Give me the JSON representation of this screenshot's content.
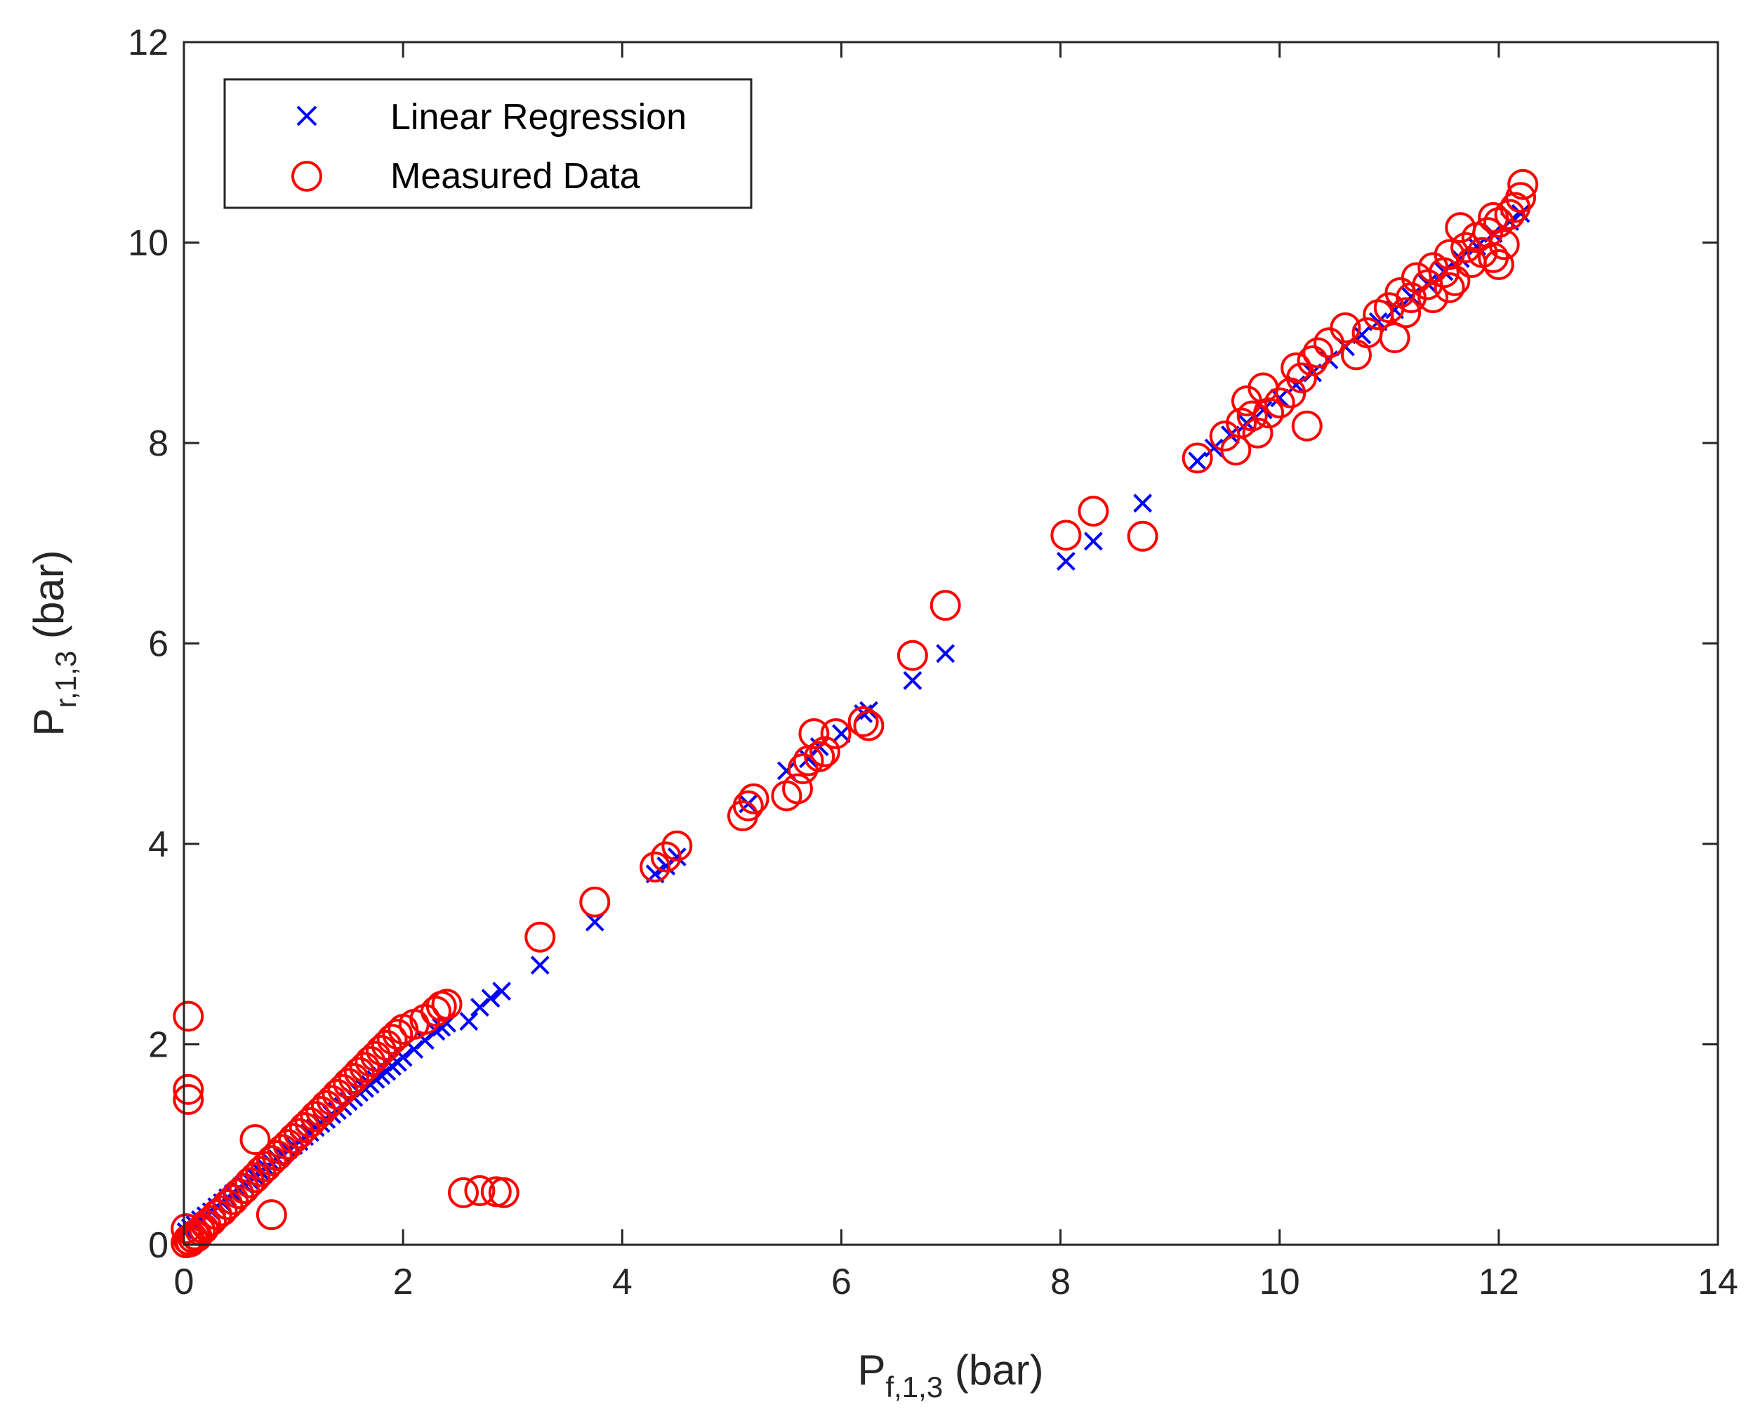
{
  "chart_data": {
    "type": "scatter",
    "title": "",
    "xlabel": {
      "main": "P",
      "sub": "f,1,3",
      "unit": " (bar)"
    },
    "ylabel": {
      "main": "P",
      "sub": "r,1,3",
      "unit": " (bar)"
    },
    "xlim": [
      0,
      14
    ],
    "ylim": [
      0,
      12
    ],
    "xticks": [
      0,
      2,
      4,
      6,
      8,
      10,
      12,
      14
    ],
    "yticks": [
      0,
      2,
      4,
      6,
      8,
      10,
      12
    ],
    "grid": false,
    "legend_position": "top-left",
    "series": [
      {
        "name": "Linear Regression",
        "marker": "x",
        "color": "#0000ff",
        "points": [
          [
            0.02,
            0.13
          ],
          [
            0.06,
            0.17
          ],
          [
            0.1,
            0.2
          ],
          [
            0.15,
            0.25
          ],
          [
            0.2,
            0.29
          ],
          [
            0.25,
            0.33
          ],
          [
            0.3,
            0.38
          ],
          [
            0.35,
            0.42
          ],
          [
            0.4,
            0.47
          ],
          [
            0.45,
            0.51
          ],
          [
            0.5,
            0.55
          ],
          [
            0.55,
            0.6
          ],
          [
            0.6,
            0.64
          ],
          [
            0.65,
            0.68
          ],
          [
            0.7,
            0.73
          ],
          [
            0.75,
            0.77
          ],
          [
            0.8,
            0.82
          ],
          [
            0.85,
            0.86
          ],
          [
            0.9,
            0.9
          ],
          [
            0.95,
            0.95
          ],
          [
            1.0,
            0.99
          ],
          [
            1.05,
            1.03
          ],
          [
            1.1,
            1.08
          ],
          [
            1.15,
            1.12
          ],
          [
            1.2,
            1.17
          ],
          [
            1.25,
            1.21
          ],
          [
            1.3,
            1.25
          ],
          [
            1.35,
            1.3
          ],
          [
            1.4,
            1.34
          ],
          [
            1.45,
            1.38
          ],
          [
            1.5,
            1.43
          ],
          [
            1.55,
            1.47
          ],
          [
            1.6,
            1.52
          ],
          [
            1.65,
            1.56
          ],
          [
            1.7,
            1.6
          ],
          [
            1.75,
            1.65
          ],
          [
            1.8,
            1.69
          ],
          [
            1.85,
            1.73
          ],
          [
            1.9,
            1.78
          ],
          [
            1.95,
            1.82
          ],
          [
            2.0,
            1.87
          ],
          [
            2.1,
            1.95
          ],
          [
            2.2,
            2.04
          ],
          [
            2.3,
            2.13
          ],
          [
            2.35,
            2.17
          ],
          [
            2.4,
            2.21
          ],
          [
            2.6,
            2.23
          ],
          [
            2.7,
            2.37
          ],
          [
            2.8,
            2.46
          ],
          [
            2.9,
            2.53
          ],
          [
            3.25,
            2.79
          ],
          [
            3.75,
            3.22
          ],
          [
            4.3,
            3.7
          ],
          [
            4.4,
            3.78
          ],
          [
            4.5,
            3.87
          ],
          [
            5.15,
            4.4
          ],
          [
            5.5,
            4.73
          ],
          [
            5.7,
            4.85
          ],
          [
            5.8,
            4.97
          ],
          [
            6.0,
            5.1
          ],
          [
            6.2,
            5.3
          ],
          [
            6.25,
            5.33
          ],
          [
            6.65,
            5.63
          ],
          [
            6.95,
            5.9
          ],
          [
            8.05,
            6.82
          ],
          [
            8.3,
            7.02
          ],
          [
            8.75,
            7.4
          ],
          [
            9.25,
            7.82
          ],
          [
            9.4,
            7.95
          ],
          [
            9.55,
            8.08
          ],
          [
            9.7,
            8.2
          ],
          [
            9.85,
            8.33
          ],
          [
            10.0,
            8.45
          ],
          [
            10.15,
            8.58
          ],
          [
            10.3,
            8.7
          ],
          [
            10.45,
            8.83
          ],
          [
            10.6,
            8.96
          ],
          [
            10.75,
            9.08
          ],
          [
            10.9,
            9.21
          ],
          [
            11.05,
            9.33
          ],
          [
            11.2,
            9.46
          ],
          [
            11.35,
            9.59
          ],
          [
            11.5,
            9.71
          ],
          [
            11.65,
            9.84
          ],
          [
            11.8,
            9.96
          ],
          [
            11.95,
            10.09
          ],
          [
            12.1,
            10.21
          ],
          [
            12.2,
            10.29
          ]
        ]
      },
      {
        "name": "Measured Data",
        "marker": "o",
        "color": "#ff0000",
        "points": [
          [
            0.02,
            0.02
          ],
          [
            0.04,
            0.05
          ],
          [
            0.06,
            0.03
          ],
          [
            0.08,
            0.07
          ],
          [
            0.1,
            0.1
          ],
          [
            0.12,
            0.08
          ],
          [
            0.15,
            0.14
          ],
          [
            0.02,
            0.16
          ],
          [
            0.18,
            0.16
          ],
          [
            0.2,
            0.2
          ],
          [
            0.25,
            0.24
          ],
          [
            0.3,
            0.3
          ],
          [
            0.35,
            0.34
          ],
          [
            0.4,
            0.4
          ],
          [
            0.45,
            0.45
          ],
          [
            0.5,
            0.51
          ],
          [
            0.55,
            0.56
          ],
          [
            0.6,
            0.62
          ],
          [
            0.65,
            0.67
          ],
          [
            0.7,
            0.73
          ],
          [
            0.75,
            0.78
          ],
          [
            0.8,
            0.84
          ],
          [
            0.85,
            0.89
          ],
          [
            0.9,
            0.95
          ],
          [
            0.95,
            1.0
          ],
          [
            1.0,
            1.06
          ],
          [
            1.05,
            1.11
          ],
          [
            1.1,
            1.17
          ],
          [
            1.15,
            1.22
          ],
          [
            1.2,
            1.28
          ],
          [
            1.25,
            1.33
          ],
          [
            1.3,
            1.39
          ],
          [
            1.35,
            1.44
          ],
          [
            1.4,
            1.5
          ],
          [
            1.45,
            1.55
          ],
          [
            1.5,
            1.61
          ],
          [
            1.55,
            1.66
          ],
          [
            1.6,
            1.72
          ],
          [
            1.65,
            1.77
          ],
          [
            1.7,
            1.83
          ],
          [
            1.75,
            1.88
          ],
          [
            1.8,
            1.94
          ],
          [
            1.85,
            1.99
          ],
          [
            1.9,
            2.05
          ],
          [
            1.95,
            2.1
          ],
          [
            2.0,
            2.15
          ],
          [
            2.1,
            2.2
          ],
          [
            2.2,
            2.25
          ],
          [
            2.3,
            2.33
          ],
          [
            2.35,
            2.38
          ],
          [
            2.4,
            2.4
          ],
          [
            0.65,
            1.05
          ],
          [
            0.8,
            0.3
          ],
          [
            0.04,
            2.28
          ],
          [
            0.04,
            1.55
          ],
          [
            0.04,
            1.45
          ],
          [
            2.55,
            0.52
          ],
          [
            2.7,
            0.54
          ],
          [
            2.85,
            0.53
          ],
          [
            2.92,
            0.52
          ],
          [
            3.25,
            3.07
          ],
          [
            3.75,
            3.42
          ],
          [
            4.3,
            3.77
          ],
          [
            4.4,
            3.87
          ],
          [
            4.5,
            3.98
          ],
          [
            5.1,
            4.28
          ],
          [
            5.15,
            4.38
          ],
          [
            5.2,
            4.45
          ],
          [
            5.5,
            4.48
          ],
          [
            5.6,
            4.55
          ],
          [
            5.65,
            4.75
          ],
          [
            5.7,
            4.83
          ],
          [
            5.75,
            5.1
          ],
          [
            5.8,
            4.87
          ],
          [
            5.85,
            4.92
          ],
          [
            5.95,
            5.1
          ],
          [
            6.2,
            5.22
          ],
          [
            6.25,
            5.18
          ],
          [
            6.65,
            5.88
          ],
          [
            6.95,
            6.38
          ],
          [
            8.05,
            7.08
          ],
          [
            8.3,
            7.32
          ],
          [
            8.75,
            7.07
          ],
          [
            9.25,
            7.85
          ],
          [
            9.5,
            8.07
          ],
          [
            9.6,
            7.93
          ],
          [
            9.65,
            8.2
          ],
          [
            9.7,
            8.42
          ],
          [
            9.75,
            8.27
          ],
          [
            9.8,
            8.1
          ],
          [
            9.85,
            8.55
          ],
          [
            9.9,
            8.3
          ],
          [
            10.0,
            8.4
          ],
          [
            10.1,
            8.5
          ],
          [
            10.15,
            8.75
          ],
          [
            10.2,
            8.65
          ],
          [
            10.25,
            8.17
          ],
          [
            10.3,
            8.82
          ],
          [
            10.35,
            8.9
          ],
          [
            10.45,
            9.0
          ],
          [
            10.6,
            9.15
          ],
          [
            10.7,
            8.88
          ],
          [
            10.8,
            9.1
          ],
          [
            10.9,
            9.28
          ],
          [
            11.0,
            9.35
          ],
          [
            11.05,
            9.05
          ],
          [
            11.1,
            9.5
          ],
          [
            11.2,
            9.45
          ],
          [
            11.25,
            9.65
          ],
          [
            11.35,
            9.58
          ],
          [
            11.4,
            9.75
          ],
          [
            11.5,
            9.7
          ],
          [
            11.55,
            9.88
          ],
          [
            11.6,
            9.62
          ],
          [
            11.7,
            9.95
          ],
          [
            11.75,
            9.8
          ],
          [
            11.8,
            10.05
          ],
          [
            11.85,
            9.9
          ],
          [
            11.9,
            10.1
          ],
          [
            11.95,
            9.85
          ],
          [
            12.0,
            10.2
          ],
          [
            12.05,
            9.98
          ],
          [
            12.1,
            10.28
          ],
          [
            12.15,
            10.35
          ],
          [
            12.2,
            10.45
          ],
          [
            12.22,
            10.58
          ],
          [
            12.0,
            9.78
          ],
          [
            11.65,
            10.15
          ],
          [
            11.4,
            9.45
          ],
          [
            11.15,
            9.3
          ],
          [
            11.95,
            10.25
          ],
          [
            11.55,
            9.55
          ]
        ]
      }
    ]
  }
}
